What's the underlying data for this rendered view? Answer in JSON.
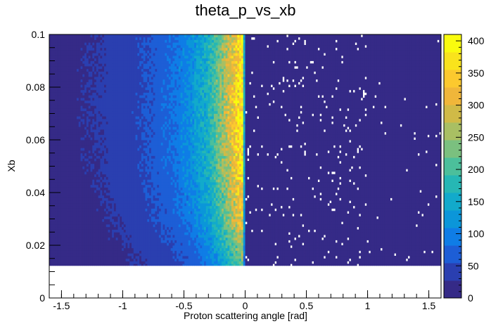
{
  "chart_data": {
    "type": "heatmap",
    "title": "theta_p_vs_xb",
    "xlabel": "Proton scattering angle [rad]",
    "ylabel": "Xb",
    "xlim": [
      -1.6,
      1.6
    ],
    "ylim": [
      0,
      0.1
    ],
    "x_ticks": [
      "-1.5",
      "-1",
      "-0.5",
      "0",
      "0.5",
      "1",
      "1.5"
    ],
    "x_tick_values": [
      -1.5,
      -1,
      -0.5,
      0,
      0.5,
      1,
      1.5
    ],
    "y_ticks": [
      "0",
      "0.02",
      "0.04",
      "0.06",
      "0.08",
      "0.1"
    ],
    "y_tick_values": [
      0,
      0.02,
      0.04,
      0.06,
      0.08,
      0.1
    ],
    "filled_y_range": [
      0.0123,
      0.1
    ],
    "z_range": [
      0,
      410
    ],
    "z_ticks": [
      "0",
      "50",
      "100",
      "150",
      "200",
      "250",
      "300",
      "350",
      "400"
    ],
    "z_tick_values": [
      0,
      50,
      100,
      150,
      200,
      250,
      300,
      350,
      400
    ],
    "x_profile": [
      {
        "x": -1.55,
        "z": 20
      },
      {
        "x": -1.4,
        "z": 22
      },
      {
        "x": -1.2,
        "z": 28
      },
      {
        "x": -1.0,
        "z": 38
      },
      {
        "x": -0.8,
        "z": 55
      },
      {
        "x": -0.6,
        "z": 80
      },
      {
        "x": -0.45,
        "z": 110
      },
      {
        "x": -0.3,
        "z": 160
      },
      {
        "x": -0.2,
        "z": 230
      },
      {
        "x": -0.1,
        "z": 310
      },
      {
        "x": -0.04,
        "z": 360
      },
      {
        "x": -0.02,
        "z": 380
      },
      {
        "x": 0.0,
        "z": 6
      },
      {
        "x": 1.55,
        "z": 1
      }
    ],
    "y_modulation": [
      {
        "y": 0.0123,
        "f": 0.55
      },
      {
        "y": 0.03,
        "f": 0.85
      },
      {
        "y": 0.05,
        "f": 1.0
      },
      {
        "y": 0.07,
        "f": 1.05
      },
      {
        "y": 0.1,
        "f": 1.0
      }
    ],
    "colormap": [
      "#352a87",
      "#2a3fb0",
      "#1d5ed6",
      "#0f7de6",
      "#0b96d9",
      "#12aacb",
      "#26b7b4",
      "#4cbf9b",
      "#7bc07f",
      "#a9bf63",
      "#d0ba47",
      "#f0b63a",
      "#fcc92e",
      "#f9e31c",
      "#f9fb0e"
    ],
    "colors": {
      "background": "#ffffff",
      "frame": "#000000",
      "empty_bin": "#ffffff"
    }
  }
}
